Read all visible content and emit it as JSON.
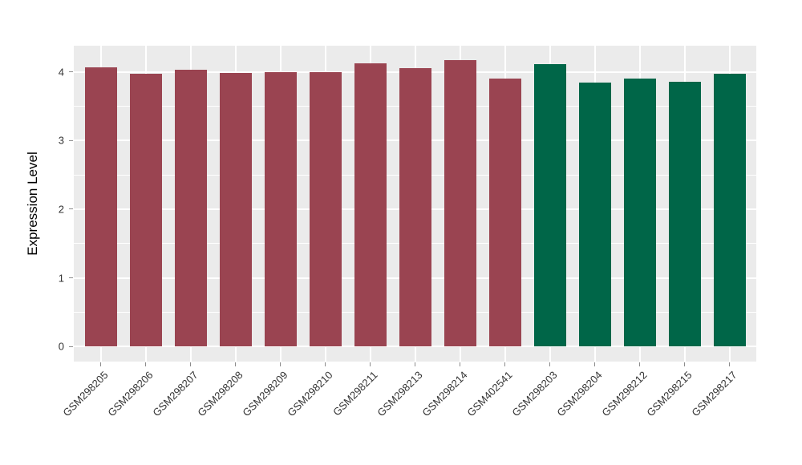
{
  "chart_data": {
    "type": "bar",
    "title": "",
    "xlabel": "",
    "ylabel": "Expression Level",
    "yticks": [
      0,
      1,
      2,
      3,
      4
    ],
    "minor_yticks": [
      0.5,
      1.5,
      2.5,
      3.5
    ],
    "ylim_display": [
      -0.22,
      4.38
    ],
    "grid": "on",
    "legend": "none",
    "categories": [
      "GSM298205",
      "GSM298206",
      "GSM298207",
      "GSM298208",
      "GSM298209",
      "GSM298210",
      "GSM298211",
      "GSM298213",
      "GSM298214",
      "GSM402541",
      "GSM298203",
      "GSM298204",
      "GSM298212",
      "GSM298215",
      "GSM298217"
    ],
    "values": [
      4.06,
      3.97,
      4.03,
      3.98,
      4.0,
      4.0,
      4.12,
      4.05,
      4.17,
      3.9,
      4.11,
      3.84,
      3.9,
      3.85,
      3.97
    ],
    "groups": [
      "maroon",
      "maroon",
      "maroon",
      "maroon",
      "maroon",
      "maroon",
      "maroon",
      "maroon",
      "maroon",
      "maroon",
      "green",
      "green",
      "green",
      "green",
      "green"
    ],
    "group_colors": {
      "maroon": "#9A4451",
      "green": "#006648"
    }
  },
  "style": {
    "background": "#FFFFFF",
    "panel_bg": "#EBEBEB",
    "grid_color": "#FFFFFF",
    "tick_label_color": "#333333",
    "tick_mark_color": "#8C8C8C",
    "axis_title_color": "#000000"
  }
}
